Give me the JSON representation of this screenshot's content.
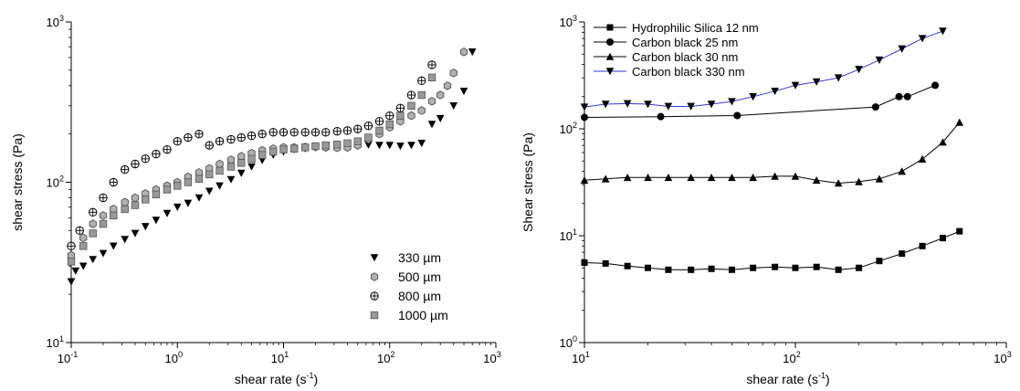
{
  "chart_data": [
    {
      "type": "scatter",
      "title": "",
      "xlabel": "shear rate (s",
      "xlabel_sup": "-1",
      "xlabel_tail": ")",
      "ylabel": "shear stress (Pa)",
      "xscale": "log",
      "yscale": "log",
      "xlim": [
        0.1,
        1000
      ],
      "ylim": [
        10,
        1000
      ],
      "x_ticks": [
        {
          "base": "10",
          "exp": "-1"
        },
        {
          "base": "10",
          "exp": "0"
        },
        {
          "base": "10",
          "exp": "1"
        },
        {
          "base": "10",
          "exp": "2"
        },
        {
          "base": "10",
          "exp": "3"
        }
      ],
      "y_ticks": [
        {
          "base": "10",
          "exp": "1"
        },
        {
          "base": "10",
          "exp": "2"
        },
        {
          "base": "10",
          "exp": "3"
        }
      ],
      "legend_position": "bottom-right",
      "series": [
        {
          "name": "330 µm",
          "marker": "triangle-down-filled",
          "color": "#000000",
          "x": [
            0.1,
            0.11,
            0.13,
            0.16,
            0.2,
            0.25,
            0.32,
            0.4,
            0.5,
            0.63,
            0.8,
            1.0,
            1.26,
            1.6,
            2.0,
            2.5,
            3.2,
            4.0,
            5.0,
            6.3,
            8.0,
            10,
            12.6,
            16,
            20,
            25,
            32,
            40,
            50,
            63,
            80,
            100,
            126,
            160,
            200,
            250,
            300,
            400,
            500,
            600
          ],
          "y": [
            24,
            28,
            30,
            33,
            36,
            40,
            44,
            48,
            53,
            58,
            64,
            70,
            74,
            80,
            88,
            95,
            104,
            114,
            125,
            137,
            148,
            155,
            160,
            162,
            165,
            167,
            168,
            169,
            170,
            171,
            170,
            170,
            168,
            170,
            175,
            230,
            250,
            300,
            370,
            650
          ]
        },
        {
          "name": "500 µm",
          "marker": "hexagon-gray",
          "color": "#b0b0b0",
          "x": [
            0.1,
            0.13,
            0.16,
            0.2,
            0.25,
            0.32,
            0.4,
            0.5,
            0.63,
            0.8,
            1.0,
            1.26,
            1.6,
            2.0,
            2.5,
            3.2,
            4.0,
            5.0,
            6.3,
            8.0,
            10,
            12.6,
            16,
            20,
            25,
            32,
            40,
            50,
            63,
            80,
            100,
            126,
            160,
            200,
            250,
            300,
            350,
            400,
            500
          ],
          "y": [
            35,
            45,
            55,
            62,
            68,
            75,
            80,
            85,
            90,
            95,
            100,
            108,
            115,
            122,
            130,
            138,
            145,
            152,
            158,
            162,
            165,
            165,
            166,
            166,
            165,
            164,
            165,
            170,
            185,
            200,
            220,
            240,
            260,
            280,
            320,
            350,
            400,
            480,
            650
          ]
        },
        {
          "name": "800 µm",
          "marker": "circle-plus",
          "color": "#000000",
          "x": [
            0.1,
            0.12,
            0.16,
            0.2,
            0.25,
            0.32,
            0.4,
            0.5,
            0.63,
            0.8,
            1.0,
            1.26,
            1.6,
            2.0,
            2.5,
            3.2,
            4.0,
            5.0,
            6.3,
            8.0,
            10,
            12.6,
            16,
            20,
            25,
            32,
            40,
            50,
            63,
            80,
            100,
            126,
            160,
            200,
            250
          ],
          "y": [
            40,
            50,
            65,
            80,
            100,
            120,
            130,
            140,
            150,
            160,
            180,
            190,
            200,
            170,
            180,
            185,
            190,
            195,
            200,
            205,
            205,
            205,
            205,
            205,
            205,
            208,
            210,
            215,
            225,
            240,
            260,
            290,
            350,
            430,
            540
          ]
        },
        {
          "name": "1000 µm",
          "marker": "square-gray",
          "color": "#999999",
          "x": [
            0.1,
            0.13,
            0.16,
            0.2,
            0.25,
            0.32,
            0.4,
            0.5,
            0.63,
            0.8,
            1.0,
            1.26,
            1.6,
            2.0,
            2.5,
            3.2,
            4.0,
            5.0,
            6.3,
            8.0,
            10,
            12.6,
            16,
            20,
            25,
            32,
            40,
            50,
            63,
            80,
            100,
            126,
            160,
            200,
            250
          ],
          "y": [
            32,
            40,
            48,
            55,
            62,
            68,
            72,
            78,
            84,
            90,
            95,
            100,
            105,
            112,
            118,
            125,
            132,
            140,
            148,
            155,
            160,
            162,
            165,
            168,
            170,
            172,
            175,
            180,
            190,
            210,
            230,
            260,
            300,
            350,
            450
          ]
        }
      ]
    },
    {
      "type": "line",
      "title": "",
      "xlabel": "shear rate (s",
      "xlabel_sup": "-1",
      "xlabel_tail": ")",
      "ylabel": "Shear stress (Pa)",
      "xscale": "log",
      "yscale": "log",
      "xlim": [
        10,
        1000
      ],
      "ylim": [
        1,
        1000
      ],
      "x_ticks": [
        {
          "base": "10",
          "exp": "1"
        },
        {
          "base": "10",
          "exp": "2"
        },
        {
          "base": "10",
          "exp": "3"
        }
      ],
      "y_ticks": [
        {
          "base": "10",
          "exp": "0"
        },
        {
          "base": "10",
          "exp": "1"
        },
        {
          "base": "10",
          "exp": "2"
        },
        {
          "base": "10",
          "exp": "3"
        }
      ],
      "legend_position": "top-left",
      "series": [
        {
          "name": "Hydrophilic Silica 12 nm",
          "marker": "square",
          "color": "#000000",
          "x": [
            10,
            12.6,
            16,
            20,
            25,
            32,
            40,
            50,
            63,
            80,
            100,
            126,
            160,
            200,
            250,
            320,
            400,
            500,
            600
          ],
          "y": [
            5.6,
            5.5,
            5.2,
            5.0,
            4.8,
            4.8,
            4.9,
            4.8,
            5.0,
            5.1,
            5.0,
            5.1,
            4.8,
            5.0,
            5.8,
            6.8,
            8.0,
            9.5,
            11
          ]
        },
        {
          "name": "Carbon black 25 nm",
          "marker": "circle",
          "color": "#000000",
          "x": [
            10,
            23,
            53,
            240,
            310,
            340,
            460
          ],
          "y": [
            128,
            130,
            133,
            160,
            200,
            200,
            255
          ]
        },
        {
          "name": "Carbon black 30 nm",
          "marker": "triangle-up",
          "color": "#000000",
          "x": [
            10,
            12.6,
            16,
            20,
            25,
            32,
            40,
            50,
            63,
            80,
            100,
            126,
            160,
            200,
            250,
            320,
            400,
            500,
            600
          ],
          "y": [
            33,
            34,
            35,
            35,
            35,
            35,
            35,
            35,
            35,
            36,
            36,
            33,
            31,
            32,
            34,
            40,
            52,
            75,
            115
          ]
        },
        {
          "name": "Carbon black 330 nm",
          "marker": "triangle-down",
          "color": "#000000",
          "line_color": "#2b3bd4",
          "x": [
            10,
            12.6,
            16,
            20,
            25,
            32,
            40,
            50,
            63,
            80,
            100,
            126,
            160,
            200,
            250,
            320,
            400,
            500
          ],
          "y": [
            160,
            170,
            172,
            170,
            162,
            162,
            170,
            180,
            200,
            225,
            255,
            275,
            300,
            360,
            440,
            560,
            700,
            820
          ]
        }
      ]
    }
  ]
}
